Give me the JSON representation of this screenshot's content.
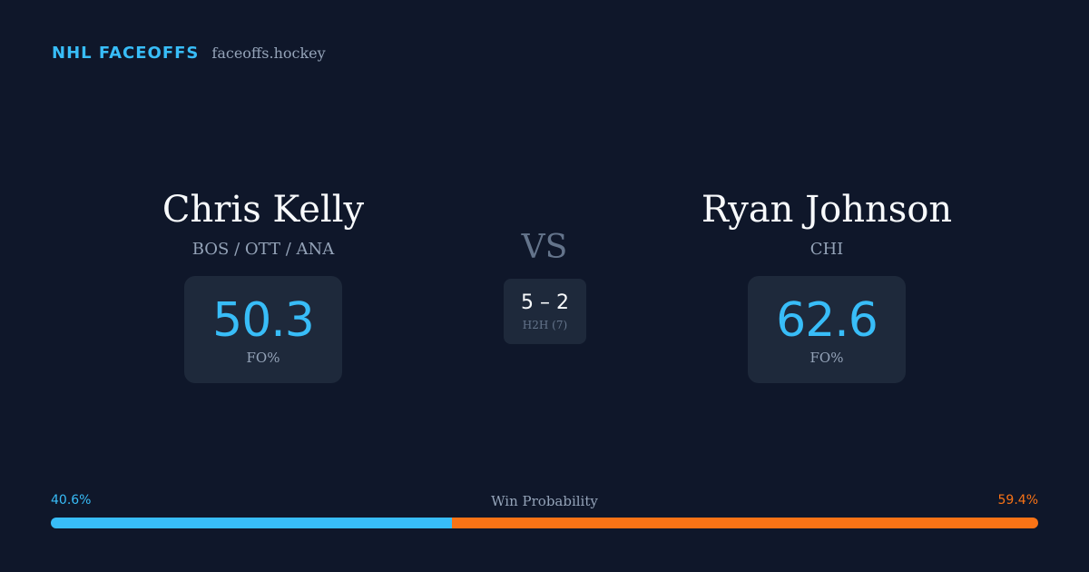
{
  "brand": {
    "name": "NHL FACEOFFS",
    "url": "faceoffs.hockey"
  },
  "player_left": {
    "name": "Chris Kelly",
    "teams": "BOS / OTT / ANA",
    "fo_value": "50.3",
    "fo_label": "FO%"
  },
  "player_right": {
    "name": "Ryan Johnson",
    "teams": "CHI",
    "fo_value": "62.6",
    "fo_label": "FO%"
  },
  "versus": {
    "label": "VS",
    "h2h_score": "5 – 2",
    "h2h_label": "H2H (7)"
  },
  "win_probability": {
    "title": "Win Probability",
    "left_label": "40.6%",
    "right_label": "59.4%",
    "left_percent": 40.6,
    "right_percent": 59.4
  },
  "colors": {
    "background": "#0f172a",
    "accent_blue": "#38bdf8",
    "accent_orange": "#f97316",
    "card": "#1e293b"
  }
}
